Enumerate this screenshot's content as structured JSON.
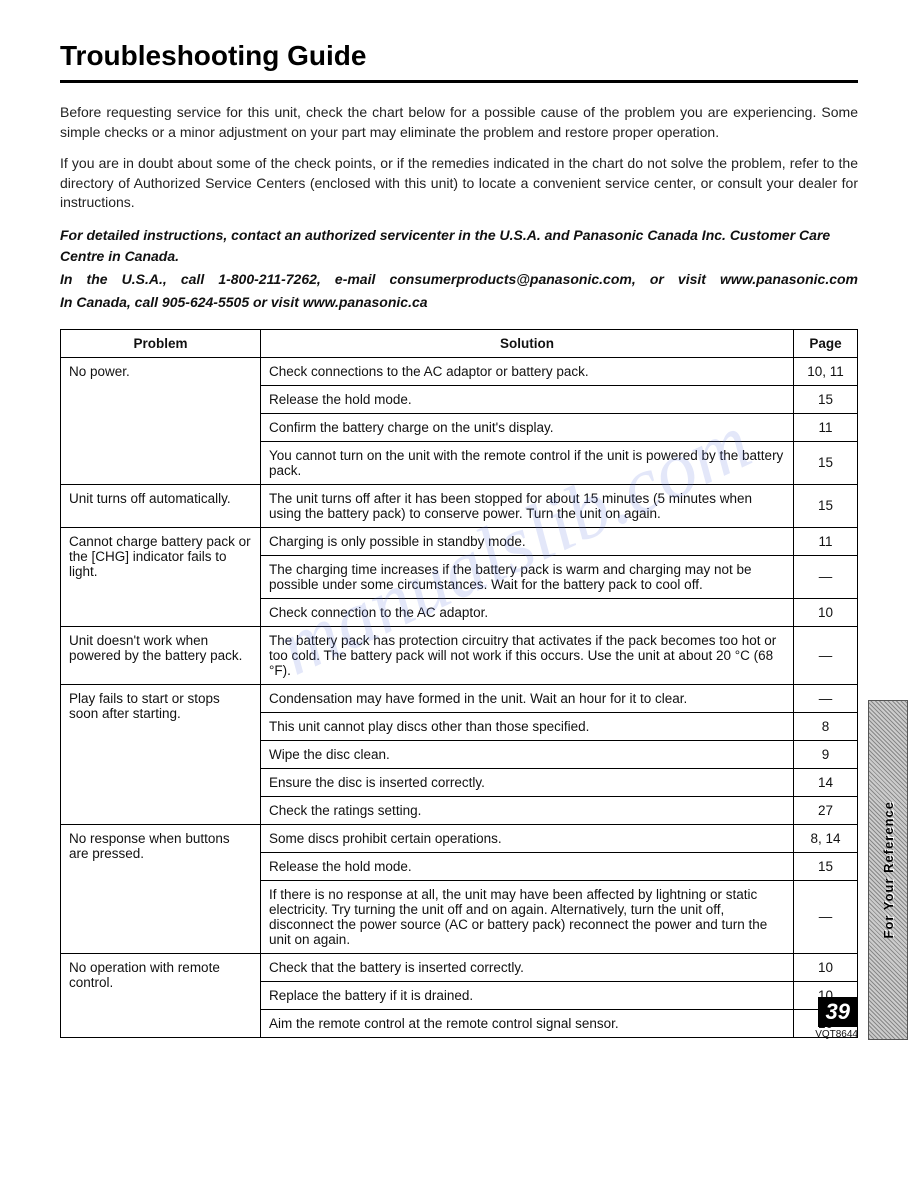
{
  "title": "Troubleshooting Guide",
  "intro": {
    "p1": "Before requesting service for this unit, check the chart below for a possible cause of the problem you are experiencing. Some simple checks or a minor adjustment on your part may eliminate the problem and restore proper operation.",
    "p2": "If you are in doubt about some of the check points, or if the remedies indicated in the chart do not solve the problem, refer to the directory of Authorized Service Centers (enclosed with this unit) to locate a convenient service center, or consult your dealer for instructions."
  },
  "contact": {
    "line1": "For detailed instructions, contact an authorized servicenter in the U.S.A. and Panasonic Canada Inc. Customer Care Centre in Canada.",
    "line2": "In the U.S.A., call 1-800-211-7262, e-mail consumerproducts@panasonic.com, or visit www.panasonic.com",
    "line3": "In Canada, call 905-624-5505 or visit www.panasonic.ca"
  },
  "table": {
    "headers": {
      "problem": "Problem",
      "solution": "Solution",
      "page": "Page"
    },
    "groups": [
      {
        "problem": "No power.",
        "rows": [
          {
            "solution": "Check connections to the AC adaptor or battery pack.",
            "page": "10, 11"
          },
          {
            "solution": "Release the hold mode.",
            "page": "15"
          },
          {
            "solution": "Confirm the battery charge on the unit's display.",
            "page": "11"
          },
          {
            "solution": "You cannot turn on the unit with the remote control if the unit is powered by the battery pack.",
            "page": "15"
          }
        ]
      },
      {
        "problem": "Unit turns off automatically.",
        "rows": [
          {
            "solution": "The unit turns off after it has been stopped for about 15 minutes (5 minutes when using the battery pack) to conserve power. Turn the unit on again.",
            "page": "15"
          }
        ]
      },
      {
        "problem": "Cannot charge battery pack or the [CHG] indicator fails to light.",
        "rows": [
          {
            "solution": "Charging is only possible in standby mode.",
            "page": "11"
          },
          {
            "solution": "The charging time increases if the battery pack is warm and charging may not be possible under some circumstances. Wait for the battery pack to cool off.",
            "page": "—"
          },
          {
            "solution": "Check connection to the AC adaptor.",
            "page": "10"
          }
        ]
      },
      {
        "problem": "Unit doesn't work when powered by the battery pack.",
        "rows": [
          {
            "solution": "The battery pack has protection circuitry that activates if the pack becomes too hot or too cold. The battery pack will not work if this occurs. Use the unit at about 20 °C (68 °F).",
            "page": "—"
          }
        ]
      },
      {
        "problem": "Play fails to start or stops soon after starting.",
        "rows": [
          {
            "solution": "Condensation may have formed in the unit. Wait an hour for it to clear.",
            "page": "—"
          },
          {
            "solution": "This unit cannot play discs other than those specified.",
            "page": "8"
          },
          {
            "solution": "Wipe the disc clean.",
            "page": "9"
          },
          {
            "solution": "Ensure the disc is inserted correctly.",
            "page": "14"
          },
          {
            "solution": "Check the ratings setting.",
            "page": "27"
          }
        ]
      },
      {
        "problem": "No response when buttons are pressed.",
        "rows": [
          {
            "solution": "Some discs prohibit certain operations.",
            "page": "8, 14"
          },
          {
            "solution": "Release the hold mode.",
            "page": "15"
          },
          {
            "solution": "If there is no response at all, the unit may have been affected by lightning or static electricity. Try turning the unit off and on again. Alternatively, turn the unit off, disconnect the power source (AC or battery pack) reconnect the power and turn the unit on again.",
            "page": "—"
          }
        ]
      },
      {
        "problem": "No operation with remote control.",
        "rows": [
          {
            "solution": "Check that the battery is inserted correctly.",
            "page": "10"
          },
          {
            "solution": "Replace the battery if it is drained.",
            "page": "10"
          },
          {
            "solution": "Aim the remote control at the remote control signal sensor.",
            "page": "10"
          }
        ]
      }
    ]
  },
  "watermark": "manualslib.com",
  "sideTab": "For Your Reference",
  "pageNumber": "39",
  "docId": "VQT8644"
}
